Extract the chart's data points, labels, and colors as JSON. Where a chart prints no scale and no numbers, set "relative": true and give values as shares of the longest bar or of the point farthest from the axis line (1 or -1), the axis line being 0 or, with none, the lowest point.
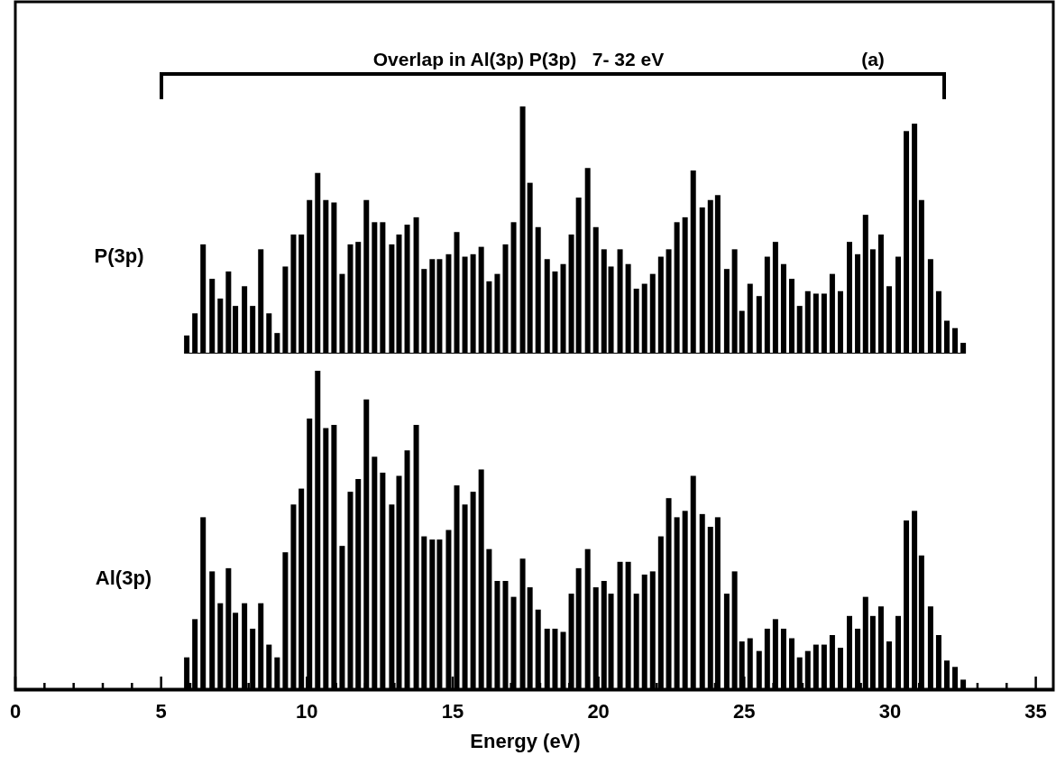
{
  "chart_data": [
    {
      "type": "bar",
      "relative": true,
      "xlim": [
        0,
        35.6
      ],
      "x": [
        5.88,
        6.16,
        6.44,
        6.75,
        7.03,
        7.31,
        7.55,
        7.86,
        8.14,
        8.42,
        8.7,
        8.98,
        9.26,
        9.54,
        9.81,
        10.09,
        10.37,
        10.65,
        10.93,
        11.21,
        11.49,
        11.76,
        12.04,
        12.32,
        12.6,
        12.91,
        13.16,
        13.44,
        13.75,
        14.02,
        14.3,
        14.55,
        14.86,
        15.14,
        15.42,
        15.7,
        15.98,
        16.25,
        16.53,
        16.81,
        17.09,
        17.4,
        17.65,
        17.93,
        18.24,
        18.51,
        18.79,
        19.07,
        19.32,
        19.63,
        19.91,
        20.19,
        20.43,
        20.74,
        21.02,
        21.3,
        21.58,
        21.86,
        22.14,
        22.41,
        22.69,
        22.97,
        23.25,
        23.56,
        23.84,
        24.09,
        24.4,
        24.67,
        24.92,
        25.2,
        25.51,
        25.79,
        26.07,
        26.35,
        26.63,
        26.9,
        27.18,
        27.46,
        27.74,
        28.02,
        28.3,
        28.61,
        28.89,
        29.16,
        29.41,
        29.69,
        29.97,
        30.28,
        30.56,
        30.84,
        31.08,
        31.39,
        31.67,
        31.95,
        32.23,
        32.51
      ],
      "series": [
        {
          "name": "P(3p)",
          "color": "#000000",
          "values": [
            0.07,
            0.16,
            0.44,
            0.3,
            0.22,
            0.33,
            0.19,
            0.27,
            0.19,
            0.42,
            0.16,
            0.08,
            0.35,
            0.48,
            0.48,
            0.62,
            0.73,
            0.62,
            0.61,
            0.32,
            0.44,
            0.45,
            0.62,
            0.53,
            0.53,
            0.44,
            0.48,
            0.52,
            0.55,
            0.34,
            0.38,
            0.38,
            0.4,
            0.49,
            0.39,
            0.4,
            0.43,
            0.29,
            0.32,
            0.44,
            0.53,
            1,
            0.69,
            0.51,
            0.38,
            0.33,
            0.36,
            0.48,
            0.63,
            0.75,
            0.51,
            0.42,
            0.35,
            0.42,
            0.36,
            0.26,
            0.28,
            0.32,
            0.39,
            0.42,
            0.53,
            0.55,
            0.74,
            0.59,
            0.62,
            0.64,
            0.34,
            0.42,
            0.17,
            0.28,
            0.23,
            0.39,
            0.45,
            0.36,
            0.3,
            0.19,
            0.25,
            0.24,
            0.24,
            0.32,
            0.25,
            0.45,
            0.4,
            0.56,
            0.42,
            0.48,
            0.27,
            0.39,
            0.9,
            0.93,
            0.62,
            0.38,
            0.25,
            0.13,
            0.1,
            0.04
          ]
        }
      ],
      "annotations": [
        "Overlap in Al(3p) P(3p)   7- 32 eV",
        "(a)"
      ]
    },
    {
      "type": "bar",
      "relative": true,
      "xlim": [
        0,
        35.6
      ],
      "xlabel": "Energy (eV)",
      "xticks": [
        0,
        {
          "value": 1,
          "label": null
        },
        {
          "value": 2,
          "label": null
        },
        {
          "value": 3,
          "label": null
        },
        {
          "value": 4,
          "label": null
        },
        5,
        {
          "value": 6,
          "label": null
        },
        {
          "value": 7,
          "label": null
        },
        {
          "value": 8,
          "label": null
        },
        {
          "value": 9,
          "label": null
        },
        10,
        {
          "value": 11,
          "label": null
        },
        {
          "value": 12,
          "label": null
        },
        {
          "value": 13,
          "label": null
        },
        {
          "value": 14,
          "label": null
        },
        15,
        {
          "value": 16,
          "label": null
        },
        {
          "value": 17,
          "label": null
        },
        {
          "value": 18,
          "label": null
        },
        {
          "value": 19,
          "label": null
        },
        20,
        {
          "value": 21,
          "label": null
        },
        {
          "value": 22,
          "label": null
        },
        {
          "value": 23,
          "label": null
        },
        {
          "value": 24,
          "label": null
        },
        25,
        {
          "value": 26,
          "label": null
        },
        {
          "value": 27,
          "label": null
        },
        {
          "value": 28,
          "label": null
        },
        {
          "value": 29,
          "label": null
        },
        30,
        {
          "value": 31,
          "label": null
        },
        {
          "value": 32,
          "label": null
        },
        {
          "value": 33,
          "label": null
        },
        {
          "value": 34,
          "label": null
        },
        35
      ],
      "x": [
        5.88,
        6.16,
        6.44,
        6.75,
        7.03,
        7.31,
        7.55,
        7.86,
        8.14,
        8.42,
        8.7,
        8.98,
        9.26,
        9.54,
        9.81,
        10.09,
        10.37,
        10.65,
        10.93,
        11.21,
        11.49,
        11.76,
        12.04,
        12.32,
        12.6,
        12.91,
        13.16,
        13.44,
        13.75,
        14.02,
        14.3,
        14.55,
        14.86,
        15.14,
        15.42,
        15.7,
        15.98,
        16.25,
        16.53,
        16.81,
        17.09,
        17.4,
        17.65,
        17.93,
        18.24,
        18.51,
        18.79,
        19.07,
        19.32,
        19.63,
        19.91,
        20.19,
        20.43,
        20.74,
        21.02,
        21.3,
        21.58,
        21.86,
        22.14,
        22.41,
        22.69,
        22.97,
        23.25,
        23.56,
        23.84,
        24.09,
        24.4,
        24.67,
        24.92,
        25.2,
        25.51,
        25.79,
        26.07,
        26.35,
        26.63,
        26.9,
        27.18,
        27.46,
        27.74,
        28.02,
        28.3,
        28.61,
        28.89,
        29.16,
        29.41,
        29.69,
        29.97,
        30.28,
        30.56,
        30.84,
        31.08,
        31.39,
        31.67,
        31.95,
        32.23,
        32.51
      ],
      "series": [
        {
          "name": "Al(3p)",
          "color": "#000000",
          "values": [
            0.1,
            0.22,
            0.54,
            0.37,
            0.27,
            0.38,
            0.24,
            0.27,
            0.19,
            0.27,
            0.14,
            0.1,
            0.43,
            0.58,
            0.63,
            0.85,
            1,
            0.82,
            0.83,
            0.45,
            0.62,
            0.66,
            0.91,
            0.73,
            0.68,
            0.58,
            0.67,
            0.75,
            0.83,
            0.48,
            0.47,
            0.47,
            0.5,
            0.64,
            0.58,
            0.62,
            0.69,
            0.44,
            0.34,
            0.34,
            0.29,
            0.41,
            0.32,
            0.25,
            0.19,
            0.19,
            0.18,
            0.3,
            0.38,
            0.44,
            0.32,
            0.34,
            0.3,
            0.4,
            0.4,
            0.3,
            0.36,
            0.37,
            0.48,
            0.6,
            0.54,
            0.56,
            0.67,
            0.55,
            0.51,
            0.54,
            0.3,
            0.37,
            0.15,
            0.16,
            0.12,
            0.19,
            0.22,
            0.19,
            0.16,
            0.1,
            0.12,
            0.14,
            0.14,
            0.17,
            0.13,
            0.23,
            0.19,
            0.29,
            0.23,
            0.26,
            0.15,
            0.23,
            0.53,
            0.56,
            0.42,
            0.26,
            0.17,
            0.09,
            0.07,
            0.03
          ]
        }
      ]
    }
  ]
}
